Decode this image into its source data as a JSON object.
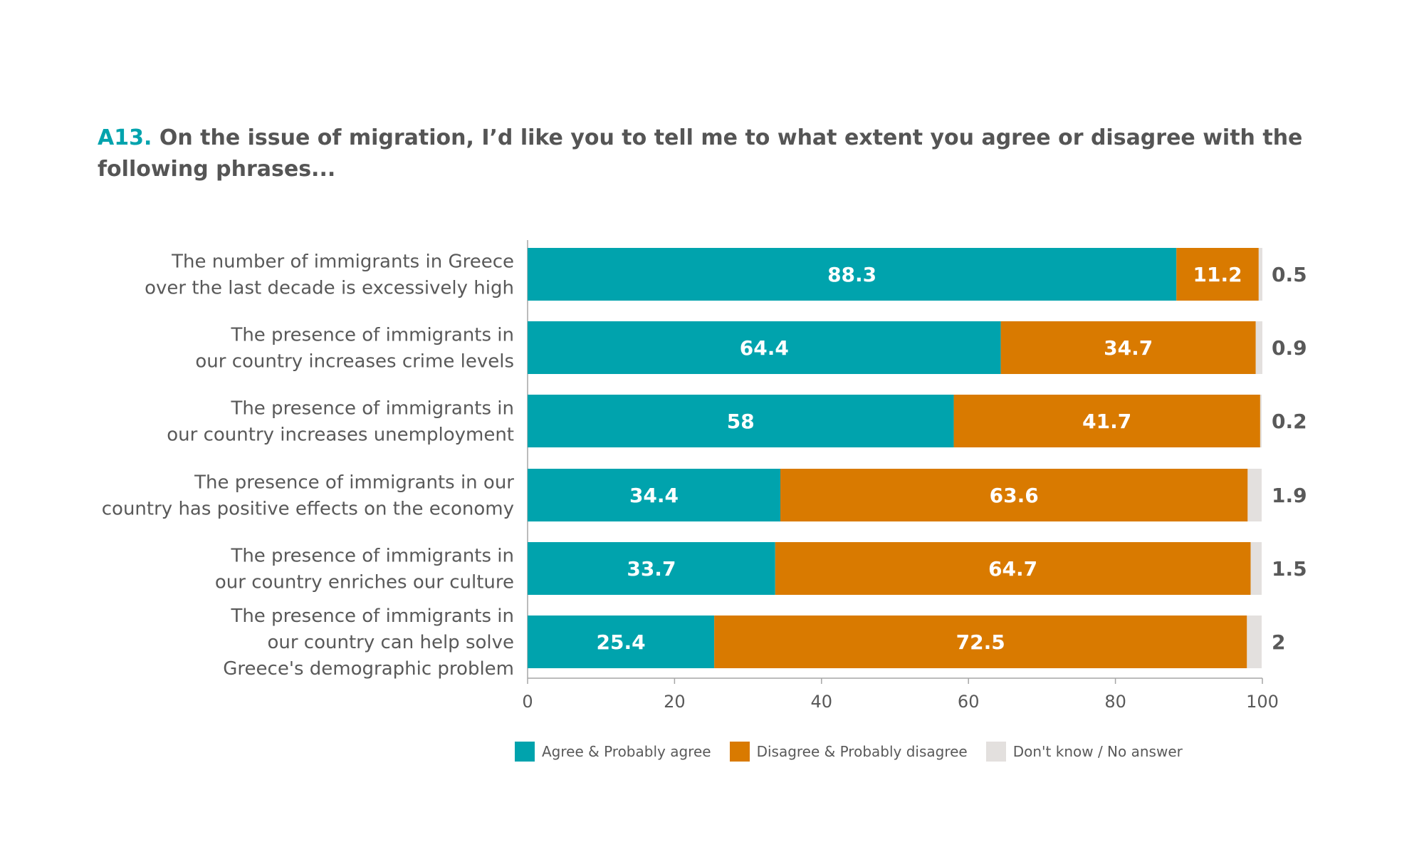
{
  "title": {
    "code": "A13.",
    "text": "On the issue of migration, I’d like you to tell me to what extent you agree or disagree with the following phrases..."
  },
  "colors": {
    "agree": "#00A3AD",
    "disagree": "#D97A00",
    "dont_know": "#E3E0DE",
    "axis": "#A6A6A6",
    "label_text": "#595959",
    "value_text": "#ffffff",
    "outside_value_text": "#595959"
  },
  "chart_data": {
    "type": "bar",
    "orientation": "horizontal",
    "stacked": true,
    "categories": [
      [
        "The number of immigrants in Greece",
        "over the last decade is excessively high"
      ],
      [
        "The presence of immigrants in",
        "our country increases crime levels"
      ],
      [
        "The presence of immigrants in",
        "our country increases unemployment"
      ],
      [
        "The presence of immigrants in our",
        "country has positive effects on the economy"
      ],
      [
        "The presence of immigrants in",
        "our country enriches our culture"
      ],
      [
        "The presence of immigrants in",
        "our country can help solve",
        "Greece's demographic problem"
      ]
    ],
    "series": [
      {
        "name": "Agree & Probably agree",
        "values": [
          88.3,
          64.4,
          58,
          34.4,
          33.7,
          25.4
        ]
      },
      {
        "name": "Disagree & Probably disagree",
        "values": [
          11.2,
          34.7,
          41.7,
          63.6,
          64.7,
          72.5
        ]
      },
      {
        "name": "Don't know / No answer",
        "values": [
          0.5,
          0.9,
          0.2,
          1.9,
          1.5,
          2
        ]
      }
    ],
    "x_ticks": [
      "0",
      "20",
      "40",
      "60",
      "80",
      "100"
    ],
    "xlim": [
      0,
      100
    ],
    "grid": false,
    "legend_position": "bottom"
  }
}
